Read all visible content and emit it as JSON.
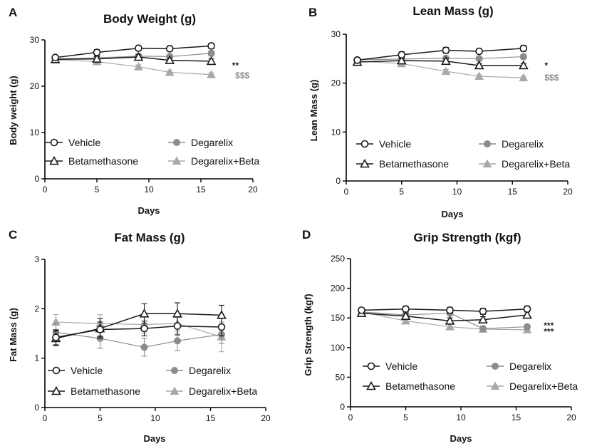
{
  "colors": {
    "black": "#1a1a1a",
    "gray": "#8c8c8c",
    "lightgray": "#a8a8a8"
  },
  "legend": [
    "Vehicle",
    "Degarelix",
    "Betamethasone",
    "Degarelix+Beta"
  ],
  "chart_data": [
    {
      "letter": "A",
      "type": "line",
      "title": "Body Weight (g)",
      "xlabel": "Days",
      "ylabel": "Body weight (g)",
      "xlim": [
        0,
        20
      ],
      "ylim": [
        0,
        30
      ],
      "xticks": [
        0,
        5,
        10,
        15,
        20
      ],
      "yticks": [
        0,
        10,
        20,
        30
      ],
      "x": [
        1,
        5,
        9,
        12,
        16
      ],
      "series": [
        {
          "name": "Vehicle",
          "values": [
            26.2,
            27.3,
            28.2,
            28.1,
            28.7
          ],
          "err": [
            0.5,
            0.6,
            0.5,
            0.5,
            0.6
          ]
        },
        {
          "name": "Degarelix",
          "values": [
            25.9,
            26.1,
            26.5,
            26.4,
            27.1
          ],
          "err": [
            0.5,
            0.5,
            0.5,
            0.5,
            0.6
          ]
        },
        {
          "name": "Betamethasone",
          "values": [
            25.8,
            25.9,
            26.3,
            25.6,
            25.4
          ],
          "err": [
            0.5,
            0.5,
            0.5,
            0.5,
            0.5
          ]
        },
        {
          "name": "Degarelix+Beta",
          "values": [
            25.7,
            25.3,
            24.2,
            23.0,
            22.5
          ],
          "err": [
            0.4,
            0.4,
            0.4,
            0.4,
            0.4
          ]
        }
      ],
      "annotations": [
        {
          "text": "**",
          "x": 18,
          "y": 24.5,
          "color": "black"
        },
        {
          "text": "$$$",
          "x": 18.3,
          "y": 22.3,
          "color": "gray"
        }
      ]
    },
    {
      "letter": "B",
      "type": "line",
      "title": "Lean Mass (g)",
      "xlabel": "Days",
      "ylabel": "Lean Mass (g)",
      "xlim": [
        0,
        20
      ],
      "ylim": [
        0,
        30
      ],
      "xticks": [
        0,
        5,
        10,
        15,
        20
      ],
      "yticks": [
        0,
        10,
        20,
        30
      ],
      "x": [
        1,
        5,
        9,
        12,
        16
      ],
      "series": [
        {
          "name": "Vehicle",
          "values": [
            24.7,
            25.8,
            26.7,
            26.5,
            27.1
          ],
          "err": [
            0.5,
            0.6,
            0.6,
            0.5,
            0.6
          ]
        },
        {
          "name": "Degarelix",
          "values": [
            24.8,
            24.9,
            25.1,
            25.0,
            25.4
          ],
          "err": [
            0.4,
            0.5,
            0.4,
            0.4,
            0.5
          ]
        },
        {
          "name": "Betamethasone",
          "values": [
            24.3,
            24.6,
            24.5,
            23.6,
            23.6
          ],
          "err": [
            0.4,
            0.4,
            0.5,
            0.4,
            0.4
          ]
        },
        {
          "name": "Degarelix+Beta",
          "values": [
            24.5,
            24.0,
            22.4,
            21.4,
            21.1
          ],
          "err": [
            0.4,
            0.4,
            0.4,
            0.3,
            0.3
          ]
        }
      ],
      "annotations": [
        {
          "text": "*",
          "x": 17.9,
          "y": 23.6,
          "color": "black"
        },
        {
          "text": "$$$",
          "x": 17.9,
          "y": 21.1,
          "color": "gray"
        }
      ]
    },
    {
      "letter": "C",
      "type": "line",
      "title": "Fat Mass (g)",
      "xlabel": "Days",
      "ylabel": "Fat Mass (g)",
      "xlim": [
        0,
        20
      ],
      "ylim": [
        0,
        3
      ],
      "xticks": [
        0,
        5,
        10,
        15,
        20
      ],
      "yticks": [
        0,
        1,
        2,
        3
      ],
      "x": [
        1,
        5,
        9,
        12,
        16
      ],
      "series": [
        {
          "name": "Vehicle",
          "values": [
            1.42,
            1.58,
            1.6,
            1.65,
            1.63
          ],
          "err": [
            0.15,
            0.15,
            0.15,
            0.18,
            0.18
          ]
        },
        {
          "name": "Degarelix",
          "values": [
            1.52,
            1.4,
            1.22,
            1.35,
            1.48
          ],
          "err": [
            0.18,
            0.2,
            0.18,
            0.2,
            0.18
          ]
        },
        {
          "name": "Betamethasone",
          "values": [
            1.4,
            1.6,
            1.9,
            1.9,
            1.87
          ],
          "err": [
            0.15,
            0.2,
            0.2,
            0.22,
            0.2
          ]
        },
        {
          "name": "Degarelix+Beta",
          "values": [
            1.73,
            1.7,
            1.68,
            1.7,
            1.43
          ],
          "err": [
            0.15,
            0.18,
            0.18,
            0.2,
            0.3
          ]
        }
      ],
      "annotations": []
    },
    {
      "letter": "D",
      "type": "line",
      "title": "Grip Strength (kgf)",
      "xlabel": "Days",
      "ylabel": "Grip Strength (kgf)",
      "xlim": [
        0,
        20
      ],
      "ylim": [
        0,
        250
      ],
      "xticks": [
        0,
        5,
        10,
        15,
        20
      ],
      "yticks": [
        0,
        50,
        100,
        150,
        200,
        250
      ],
      "x": [
        1,
        5,
        9,
        12,
        16
      ],
      "series": [
        {
          "name": "Vehicle",
          "values": [
            163,
            165,
            163,
            161,
            165
          ],
          "err": [
            4,
            5,
            5,
            5,
            5
          ]
        },
        {
          "name": "Degarelix",
          "values": [
            160,
            155,
            158,
            132,
            135
          ],
          "err": [
            4,
            4,
            4,
            4,
            4
          ]
        },
        {
          "name": "Betamethasone",
          "values": [
            158,
            153,
            145,
            147,
            155
          ],
          "err": [
            4,
            4,
            5,
            5,
            5
          ]
        },
        {
          "name": "Degarelix+Beta",
          "values": [
            160,
            145,
            135,
            131,
            130
          ],
          "err": [
            4,
            4,
            4,
            4,
            4
          ]
        }
      ],
      "annotations": [
        {
          "text": "***",
          "x": 17.5,
          "y": 137,
          "color": "black"
        },
        {
          "text": "***",
          "x": 17.5,
          "y": 127,
          "color": "black"
        }
      ]
    }
  ]
}
